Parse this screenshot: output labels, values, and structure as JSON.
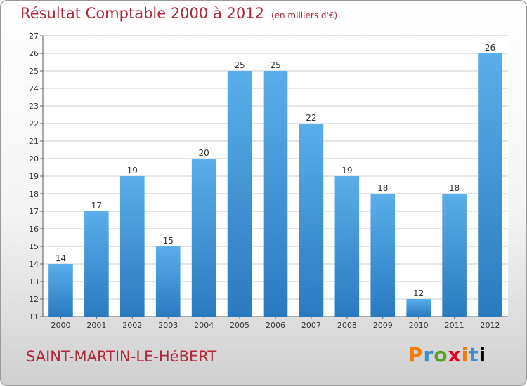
{
  "header": {
    "title": "Résultat Comptable 2000 à 2012",
    "subtitle": "(en milliers d'€)"
  },
  "footer": {
    "town": "SAINT-MARTIN-LE-HéBERT",
    "logo_letters": [
      "P",
      "r",
      "o",
      "x",
      "i",
      "t",
      "i"
    ]
  },
  "colors": {
    "bar_light": "#5aaeea",
    "bar_dark": "#2a7ac0",
    "title": "#b0283c",
    "grid": "#cccccc"
  },
  "chart_data": {
    "type": "bar",
    "title": "Résultat Comptable 2000 à 2012",
    "subtitle": "(en milliers d'€)",
    "xlabel": "",
    "ylabel": "",
    "categories": [
      "2000",
      "2001",
      "2002",
      "2003",
      "2004",
      "2005",
      "2006",
      "2007",
      "2008",
      "2009",
      "2010",
      "2011",
      "2012"
    ],
    "values": [
      14,
      17,
      19,
      15,
      20,
      25,
      25,
      22,
      19,
      18,
      12,
      18,
      26
    ],
    "ylim": [
      11,
      27
    ],
    "yticks": [
      11,
      12,
      13,
      14,
      15,
      16,
      17,
      18,
      19,
      20,
      21,
      22,
      23,
      24,
      25,
      26,
      27
    ],
    "grid": true,
    "data_labels": true
  }
}
